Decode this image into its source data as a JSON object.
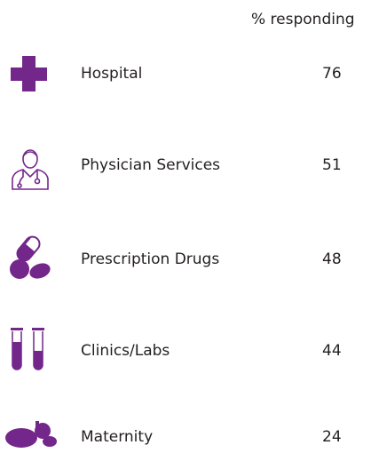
{
  "header": "% responding",
  "rows": [
    {
      "label": "Hospital",
      "value": 76
    },
    {
      "label": "Physician Services",
      "value": 51
    },
    {
      "label": "Prescription Drugs",
      "value": 48
    },
    {
      "label": "Clinics/Labs",
      "value": 44
    },
    {
      "label": "Maternity",
      "value": 24
    }
  ]
}
